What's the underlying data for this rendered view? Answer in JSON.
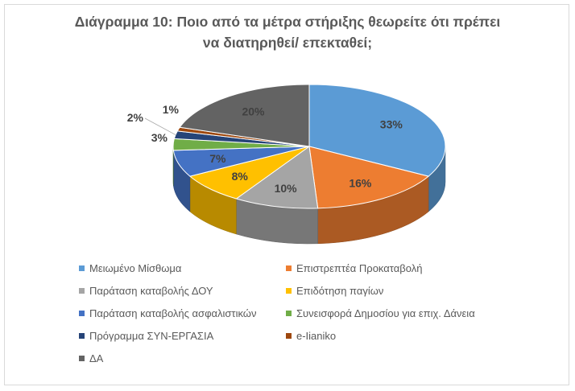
{
  "chart_data": {
    "type": "pie",
    "title": "Διάγραμμα 10: Ποιο από τα μέτρα στήριξης θεωρείτε ότι πρέπει να διατηρηθεί/ επεκταθεί;",
    "title_lines": [
      "Διάγραμμα 10: Ποιο από τα μέτρα στήριξης θεωρείτε ότι πρέπει",
      "να διατηρηθεί/ επεκταθεί;"
    ],
    "legend_position": "bottom",
    "slices": [
      {
        "label": "Μειωμένο Μίσθωμα",
        "value": 33,
        "display": "33%",
        "color": "#5b9bd5"
      },
      {
        "label": "Επιστρεπτέα Προκαταβολή",
        "value": 16,
        "display": "16%",
        "color": "#ed7d31"
      },
      {
        "label": "Παράταση καταβολής ΔΟΥ",
        "value": 10,
        "display": "10%",
        "color": "#a5a5a5"
      },
      {
        "label": "Επιδότηση παγίων",
        "value": 8,
        "display": "8%",
        "color": "#ffc000"
      },
      {
        "label": "Παράταση καταβολής ασφαλιστικών",
        "value": 7,
        "display": "7%",
        "color": "#4472c4"
      },
      {
        "label": "Συνεισφορά Δημοσίου για επιχ. Δάνεια",
        "value": 3,
        "display": "3%",
        "color": "#70ad47"
      },
      {
        "label": "Πρόγραμμα ΣΥΝ-ΕΡΓΑΣΙΑ",
        "value": 2,
        "display": "2%",
        "color": "#264478"
      },
      {
        "label": "e-Iianiko",
        "value": 1,
        "display": "1%",
        "color": "#9e480e"
      },
      {
        "label": "ΔΑ",
        "value": 20,
        "display": "20%",
        "color": "#636363"
      }
    ]
  }
}
